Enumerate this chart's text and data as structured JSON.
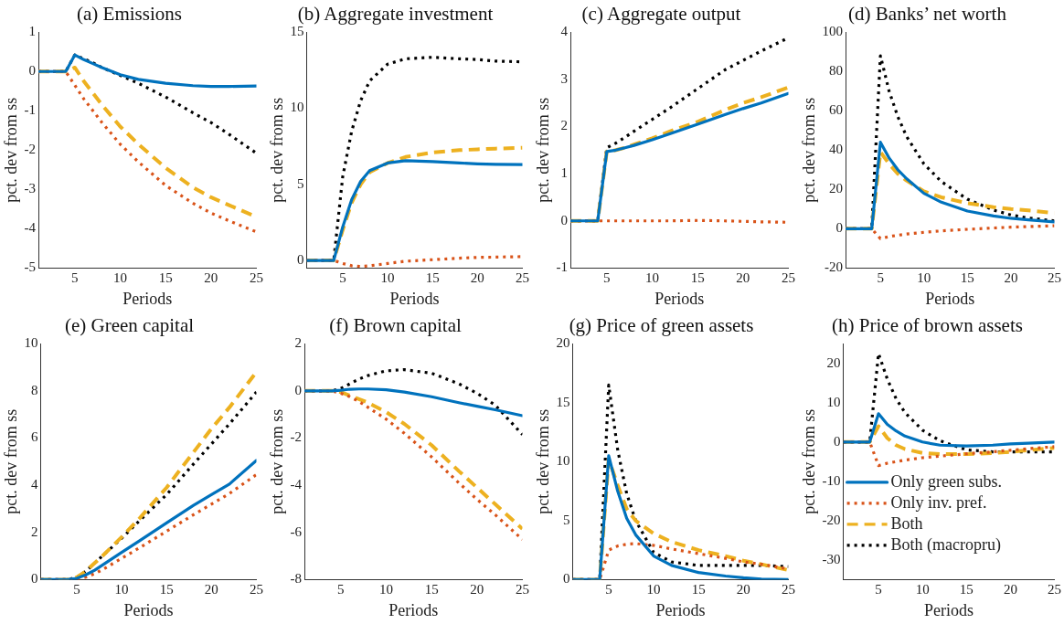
{
  "chart_data": [
    {
      "type": "line",
      "title": "(a) Emissions",
      "xlabel": "Periods",
      "ylabel": "pct. dev from ss",
      "x": [
        1,
        4,
        5,
        6,
        7,
        8,
        10,
        12,
        15,
        18,
        20,
        22,
        25
      ],
      "xlim": [
        1,
        25
      ],
      "xticks": [
        5,
        10,
        15,
        20,
        25
      ],
      "ylim": [
        -5,
        1
      ],
      "yticks": [
        -5,
        -4,
        -3,
        -2,
        -1,
        0,
        1
      ],
      "legend": false,
      "series": [
        {
          "color": "#0072bd",
          "line_style": "solid",
          "values": [
            0,
            0,
            0.42,
            0.3,
            0.2,
            0.1,
            -0.08,
            -0.2,
            -0.3,
            -0.36,
            -0.38,
            -0.38,
            -0.37
          ]
        },
        {
          "color": "#d95319",
          "line_style": "dotted",
          "values": [
            0,
            0,
            -0.35,
            -0.7,
            -1.0,
            -1.3,
            -1.85,
            -2.3,
            -2.9,
            -3.35,
            -3.6,
            -3.8,
            -4.08
          ]
        },
        {
          "color": "#edb120",
          "line_style": "dashed",
          "values": [
            0,
            0,
            0.1,
            -0.25,
            -0.55,
            -0.85,
            -1.4,
            -1.85,
            -2.45,
            -2.95,
            -3.2,
            -3.4,
            -3.7
          ]
        },
        {
          "color": "#000000",
          "line_style": "dotted",
          "values": [
            0,
            0,
            0.42,
            0.32,
            0.22,
            0.1,
            -0.1,
            -0.3,
            -0.65,
            -1.05,
            -1.3,
            -1.6,
            -2.08
          ]
        }
      ]
    },
    {
      "type": "line",
      "title": "(b) Aggregate investment",
      "xlabel": "Periods",
      "ylabel": "pct. dev from ss",
      "x": [
        1,
        4,
        5,
        6,
        7,
        8,
        10,
        12,
        15,
        18,
        20,
        22,
        25
      ],
      "xlim": [
        1,
        25
      ],
      "xticks": [
        5,
        10,
        15,
        20,
        25
      ],
      "ylim": [
        -0.5,
        15
      ],
      "yticks": [
        0,
        5,
        10,
        15
      ],
      "legend": false,
      "series": [
        {
          "color": "#0072bd",
          "line_style": "solid",
          "values": [
            0,
            0,
            2.2,
            4,
            5.2,
            5.9,
            6.4,
            6.55,
            6.5,
            6.4,
            6.35,
            6.32,
            6.3
          ]
        },
        {
          "color": "#d95319",
          "line_style": "dotted",
          "values": [
            0,
            0,
            -0.2,
            -0.35,
            -0.4,
            -0.35,
            -0.2,
            -0.05,
            0.05,
            0.15,
            0.2,
            0.22,
            0.25
          ]
        },
        {
          "color": "#edb120",
          "line_style": "dashed",
          "values": [
            0,
            0,
            2,
            3.8,
            5,
            5.8,
            6.4,
            6.8,
            7.1,
            7.25,
            7.3,
            7.35,
            7.4
          ]
        },
        {
          "color": "#000000",
          "line_style": "dotted",
          "values": [
            0,
            0,
            5.5,
            8.5,
            10.5,
            11.8,
            12.9,
            13.25,
            13.35,
            13.25,
            13.2,
            13.1,
            13.05
          ]
        }
      ]
    },
    {
      "type": "line",
      "title": "(c) Aggregate output",
      "xlabel": "Periods",
      "ylabel": "pct. dev from ss",
      "x": [
        1,
        4,
        5,
        6,
        7,
        8,
        10,
        12,
        15,
        18,
        20,
        22,
        25
      ],
      "xlim": [
        1,
        25
      ],
      "xticks": [
        5,
        10,
        15,
        20,
        25
      ],
      "ylim": [
        -1,
        4
      ],
      "yticks": [
        -1,
        0,
        1,
        2,
        3,
        4
      ],
      "legend": false,
      "series": [
        {
          "color": "#0072bd",
          "line_style": "solid",
          "values": [
            0,
            0,
            1.47,
            1.5,
            1.55,
            1.6,
            1.72,
            1.85,
            2.05,
            2.25,
            2.38,
            2.5,
            2.7
          ]
        },
        {
          "color": "#d95319",
          "line_style": "dotted",
          "values": [
            0,
            0,
            0,
            0,
            0,
            0,
            0,
            0,
            0.01,
            0,
            -0.01,
            -0.02,
            -0.03
          ]
        },
        {
          "color": "#edb120",
          "line_style": "dashed",
          "values": [
            0,
            0,
            1.47,
            1.5,
            1.55,
            1.62,
            1.75,
            1.9,
            2.1,
            2.35,
            2.5,
            2.62,
            2.83
          ]
        },
        {
          "color": "#000000",
          "line_style": "dotted",
          "values": [
            0,
            0,
            1.55,
            1.65,
            1.77,
            1.9,
            2.15,
            2.4,
            2.8,
            3.2,
            3.4,
            3.6,
            3.88
          ]
        }
      ]
    },
    {
      "type": "line",
      "title": "(d) Banks’ net worth",
      "xlabel": "Periods",
      "ylabel": "pct. dev from ss",
      "x": [
        1,
        4,
        5,
        6,
        7,
        8,
        10,
        12,
        15,
        18,
        20,
        22,
        25
      ],
      "xlim": [
        1,
        25
      ],
      "xticks": [
        5,
        10,
        15,
        20,
        25
      ],
      "ylim": [
        -20,
        100
      ],
      "yticks": [
        -20,
        0,
        20,
        40,
        60,
        80,
        100
      ],
      "legend": false,
      "series": [
        {
          "color": "#0072bd",
          "line_style": "solid",
          "values": [
            0,
            0,
            44,
            36,
            30,
            25.5,
            18,
            13.5,
            9,
            6.5,
            5.3,
            4.5,
            3.5
          ]
        },
        {
          "color": "#d95319",
          "line_style": "dotted",
          "values": [
            0,
            0,
            -5,
            -4,
            -3.3,
            -2.7,
            -1.8,
            -1.1,
            -0.3,
            0.4,
            0.8,
            1.1,
            1.5
          ]
        },
        {
          "color": "#edb120",
          "line_style": "dashed",
          "values": [
            0,
            0,
            39,
            33,
            28,
            24.5,
            19,
            16,
            13,
            11,
            10,
            9.3,
            8
          ]
        },
        {
          "color": "#000000",
          "line_style": "dotted",
          "values": [
            0,
            0,
            88,
            70,
            57,
            47,
            33,
            24,
            15,
            9.5,
            7,
            5.5,
            4
          ]
        }
      ]
    },
    {
      "type": "line",
      "title": "(e) Green capital",
      "xlabel": "Periods",
      "ylabel": "pct. dev from ss",
      "x": [
        1,
        4,
        5,
        6,
        7,
        8,
        10,
        12,
        15,
        18,
        20,
        22,
        25
      ],
      "xlim": [
        1,
        25
      ],
      "xticks": [
        5,
        10,
        15,
        20,
        25
      ],
      "ylim": [
        0,
        10
      ],
      "yticks": [
        0,
        2,
        4,
        6,
        8,
        10
      ],
      "legend": false,
      "series": [
        {
          "color": "#0072bd",
          "line_style": "solid",
          "values": [
            0,
            0,
            0.05,
            0.2,
            0.4,
            0.65,
            1.15,
            1.65,
            2.4,
            3.15,
            3.6,
            4.05,
            5.05
          ]
        },
        {
          "color": "#d95319",
          "line_style": "dotted",
          "values": [
            0,
            0,
            0,
            0.1,
            0.25,
            0.45,
            0.9,
            1.35,
            2.05,
            2.75,
            3.2,
            3.65,
            4.45
          ]
        },
        {
          "color": "#edb120",
          "line_style": "dashed",
          "values": [
            0,
            0,
            0.1,
            0.35,
            0.7,
            1.05,
            1.8,
            2.6,
            3.9,
            5.4,
            6.4,
            7.3,
            8.8
          ]
        },
        {
          "color": "#000000",
          "line_style": "dotted",
          "values": [
            0,
            0,
            0.1,
            0.35,
            0.7,
            1.05,
            1.75,
            2.5,
            3.6,
            4.9,
            5.75,
            6.6,
            7.95
          ]
        }
      ]
    },
    {
      "type": "line",
      "title": "(f) Brown capital",
      "xlabel": "Periods",
      "ylabel": "pct. dev from ss",
      "x": [
        1,
        4,
        5,
        6,
        7,
        8,
        10,
        12,
        15,
        18,
        20,
        22,
        25
      ],
      "xlim": [
        1,
        25
      ],
      "xticks": [
        5,
        10,
        15,
        20,
        25
      ],
      "ylim": [
        -8,
        2
      ],
      "yticks": [
        -8,
        -6,
        -4,
        -2,
        0,
        2
      ],
      "legend": false,
      "series": [
        {
          "color": "#0072bd",
          "line_style": "solid",
          "values": [
            0,
            0,
            0.03,
            0.07,
            0.08,
            0.08,
            0.05,
            -0.05,
            -0.25,
            -0.5,
            -0.65,
            -0.8,
            -1.05
          ]
        },
        {
          "color": "#d95319",
          "line_style": "dotted",
          "values": [
            0,
            0,
            -0.1,
            -0.25,
            -0.45,
            -0.7,
            -1.2,
            -1.8,
            -2.8,
            -3.9,
            -4.6,
            -5.25,
            -6.3
          ]
        },
        {
          "color": "#edb120",
          "line_style": "dashed",
          "values": [
            0,
            0,
            -0.05,
            -0.2,
            -0.35,
            -0.5,
            -0.9,
            -1.4,
            -2.3,
            -3.4,
            -4.1,
            -4.8,
            -5.85
          ]
        },
        {
          "color": "#000000",
          "line_style": "dotted",
          "values": [
            0,
            0,
            0.1,
            0.3,
            0.5,
            0.65,
            0.85,
            0.9,
            0.75,
            0.3,
            -0.1,
            -0.6,
            -1.85
          ]
        }
      ]
    },
    {
      "type": "line",
      "title": "(g) Price of green assets",
      "xlabel": "Periods",
      "ylabel": "pct. dev from ss",
      "x": [
        1,
        4,
        5,
        6,
        7,
        8,
        10,
        12,
        15,
        18,
        20,
        22,
        25
      ],
      "xlim": [
        1,
        25
      ],
      "xticks": [
        5,
        10,
        15,
        20,
        25
      ],
      "ylim": [
        0,
        20
      ],
      "yticks": [
        0,
        5,
        10,
        15,
        20
      ],
      "legend": false,
      "series": [
        {
          "color": "#0072bd",
          "line_style": "solid",
          "values": [
            0,
            0,
            10.5,
            7.5,
            5.2,
            3.8,
            2.0,
            1.2,
            0.6,
            0.3,
            0.15,
            0.05,
            0
          ]
        },
        {
          "color": "#d95319",
          "line_style": "dotted",
          "values": [
            0,
            0,
            2.5,
            2.85,
            3.0,
            3.05,
            2.9,
            2.6,
            2.2,
            1.8,
            1.5,
            1.3,
            0.9
          ]
        },
        {
          "color": "#edb120",
          "line_style": "dashed",
          "values": [
            0,
            0,
            10.2,
            8,
            6,
            5,
            3.9,
            3.2,
            2.5,
            2,
            1.6,
            1.3,
            0.8
          ]
        },
        {
          "color": "#000000",
          "line_style": "dotted",
          "values": [
            0,
            0,
            16.5,
            11,
            7.3,
            5,
            2.3,
            1.5,
            1.2,
            1.2,
            1.2,
            1.2,
            1.1
          ]
        }
      ]
    },
    {
      "type": "line",
      "title": "(h) Price of brown assets",
      "xlabel": "Periods",
      "ylabel": "pct. dev from ss",
      "x": [
        1,
        4,
        5,
        6,
        7,
        8,
        10,
        12,
        15,
        18,
        20,
        22,
        25
      ],
      "xlim": [
        1,
        25
      ],
      "xticks": [
        5,
        10,
        15,
        20,
        25
      ],
      "ylim": [
        -35,
        25
      ],
      "yticks": [
        -30,
        -20,
        -10,
        0,
        10,
        20
      ],
      "legend": "bottom left",
      "series": [
        {
          "name": "Only green subs.",
          "color": "#0072bd",
          "line_style": "solid",
          "values": [
            0,
            0,
            7.2,
            4.5,
            2.8,
            1.5,
            0,
            -0.8,
            -1,
            -0.8,
            -0.5,
            -0.3,
            0
          ]
        },
        {
          "name": "Only inv. pref.",
          "color": "#d95319",
          "line_style": "dotted",
          "values": [
            0,
            0,
            -6,
            -5.4,
            -5,
            -4.6,
            -4,
            -3.6,
            -3,
            -2.5,
            -2.1,
            -1.7,
            -1.2
          ]
        },
        {
          "name": "Both",
          "color": "#edb120",
          "line_style": "dashed",
          "values": [
            0,
            0,
            4,
            1,
            -0.8,
            -1.8,
            -2.8,
            -3.1,
            -3.1,
            -2.8,
            -2.5,
            -2.1,
            -1.5
          ]
        },
        {
          "name": "Both (macropru)",
          "color": "#000000",
          "line_style": "dotted",
          "values": [
            0,
            0,
            22.5,
            16,
            11,
            7.5,
            3,
            0.3,
            -2,
            -2.5,
            -2.5,
            -2.5,
            -2.5
          ]
        }
      ]
    }
  ]
}
